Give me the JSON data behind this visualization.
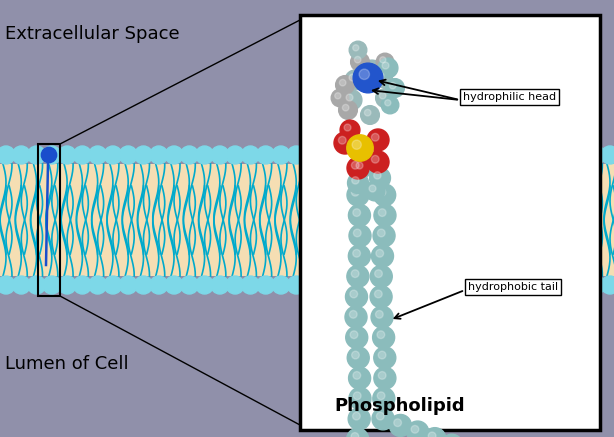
{
  "bg_color": "#9090AA",
  "membrane_bg_color": "#F5DEB3",
  "head_color": "#7DD8E8",
  "tail_line_color": "#00AACC",
  "label_extracellular": "Extracellular Space",
  "label_lumen": "Lumen of Cell",
  "label_phospholipid": "Phospholipid",
  "label_hydrophilic": "hydrophilic head",
  "label_hydrophobic": "hydrophobic tail",
  "sphere_color": "#8BBCBC",
  "blue_sphere": "#2255CC",
  "gray_sphere": "#A0A0A0",
  "yellow_sphere": "#E8C000",
  "red_sphere": "#CC2020"
}
